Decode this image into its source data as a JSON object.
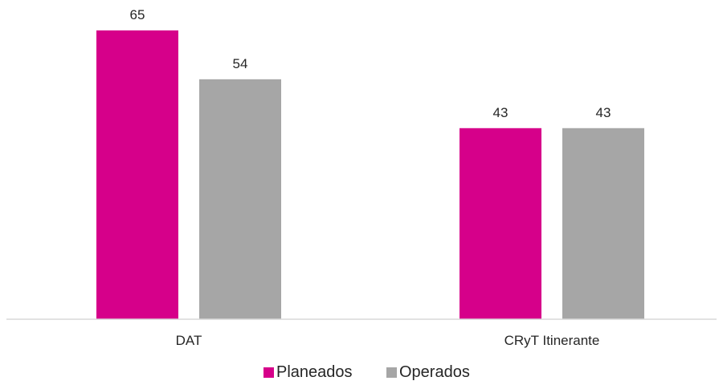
{
  "chart_data": {
    "type": "bar",
    "categories": [
      "DAT",
      "CRyT Itinerante"
    ],
    "series": [
      {
        "name": "Planeados",
        "values": [
          65,
          43
        ],
        "color": "#D6008A"
      },
      {
        "name": "Operados",
        "values": [
          54,
          43
        ],
        "color": "#A6A6A6"
      }
    ],
    "title": "",
    "xlabel": "",
    "ylabel": "",
    "ylim": [
      0,
      70
    ],
    "grid": false,
    "data_labels": true,
    "legend_position": "bottom",
    "axis_color": "#D9D9D9"
  }
}
